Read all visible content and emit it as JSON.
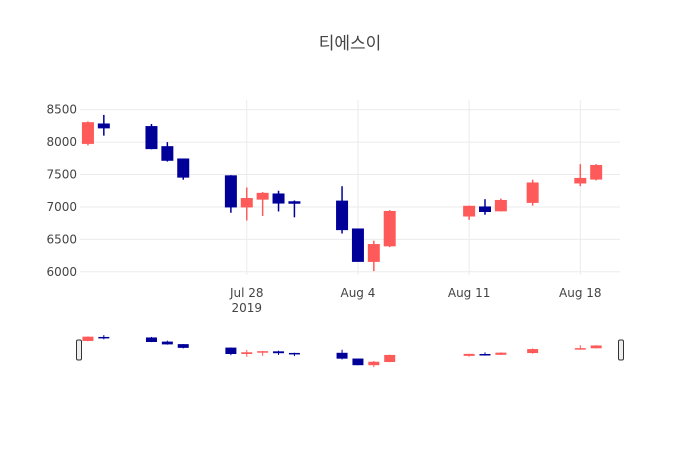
{
  "chart_data": {
    "type": "candlestick",
    "title": "티에스이",
    "xlabel": "",
    "ylabel": "",
    "ylim": [
      5950,
      8650
    ],
    "xlim": [
      "2019-07-18",
      "2019-08-20"
    ],
    "y_ticks": [
      6000,
      6500,
      7000,
      7500,
      8000,
      8500
    ],
    "x_ticks": [
      {
        "date": "2019-07-28",
        "label": "Jul 28",
        "sublabel": "2019"
      },
      {
        "date": "2019-08-04",
        "label": "Aug 4",
        "sublabel": ""
      },
      {
        "date": "2019-08-11",
        "label": "Aug 11",
        "sublabel": ""
      },
      {
        "date": "2019-08-18",
        "label": "Aug 18",
        "sublabel": ""
      }
    ],
    "increasing_color": "#ff5a5a",
    "decreasing_color": "#000099",
    "grid": true,
    "range_slider": true,
    "candles": [
      {
        "date": "2019-07-18",
        "open": 7980,
        "high": 8320,
        "low": 7950,
        "close": 8300
      },
      {
        "date": "2019-07-19",
        "open": 8280,
        "high": 8420,
        "low": 8100,
        "close": 8220
      },
      {
        "date": "2019-07-22",
        "open": 8240,
        "high": 8280,
        "low": 7890,
        "close": 7900
      },
      {
        "date": "2019-07-23",
        "open": 7930,
        "high": 8000,
        "low": 7700,
        "close": 7720
      },
      {
        "date": "2019-07-24",
        "open": 7740,
        "high": 7740,
        "low": 7420,
        "close": 7460
      },
      {
        "date": "2019-07-27",
        "open": 7480,
        "high": 7490,
        "low": 6910,
        "close": 7000
      },
      {
        "date": "2019-07-28",
        "open": 7000,
        "high": 7300,
        "low": 6790,
        "close": 7130
      },
      {
        "date": "2019-07-29",
        "open": 7120,
        "high": 7230,
        "low": 6860,
        "close": 7210
      },
      {
        "date": "2019-07-30",
        "open": 7200,
        "high": 7250,
        "low": 6930,
        "close": 7060
      },
      {
        "date": "2019-07-31",
        "open": 7080,
        "high": 7100,
        "low": 6840,
        "close": 7060
      },
      {
        "date": "2019-08-03",
        "open": 7090,
        "high": 7320,
        "low": 6590,
        "close": 6650
      },
      {
        "date": "2019-08-04",
        "open": 6660,
        "high": 6660,
        "low": 6160,
        "close": 6160
      },
      {
        "date": "2019-08-05",
        "open": 6160,
        "high": 6480,
        "low": 6010,
        "close": 6420
      },
      {
        "date": "2019-08-06",
        "open": 6400,
        "high": 6950,
        "low": 6380,
        "close": 6930
      },
      {
        "date": "2019-08-11",
        "open": 6860,
        "high": 7020,
        "low": 6800,
        "close": 7010
      },
      {
        "date": "2019-08-12",
        "open": 7000,
        "high": 7120,
        "low": 6880,
        "close": 6930
      },
      {
        "date": "2019-08-13",
        "open": 6940,
        "high": 7130,
        "low": 6930,
        "close": 7100
      },
      {
        "date": "2019-08-15",
        "open": 7070,
        "high": 7420,
        "low": 7020,
        "close": 7370
      },
      {
        "date": "2019-08-18",
        "open": 7370,
        "high": 7660,
        "low": 7320,
        "close": 7440
      },
      {
        "date": "2019-08-19",
        "open": 7430,
        "high": 7660,
        "low": 7410,
        "close": 7640
      }
    ]
  }
}
